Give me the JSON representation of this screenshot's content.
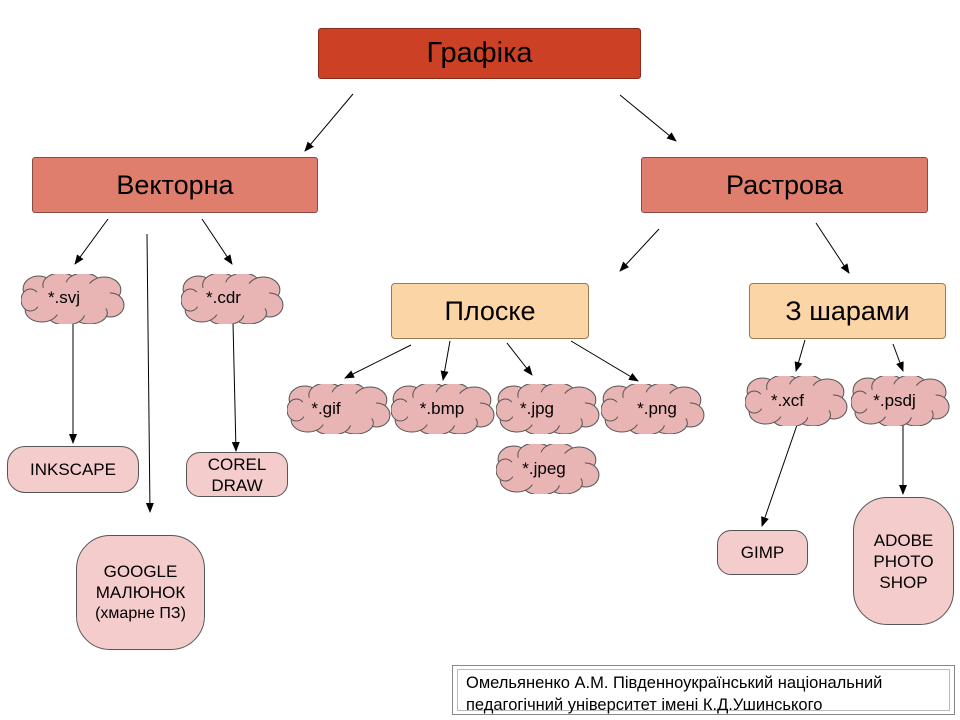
{
  "root": "Графіка",
  "categories": {
    "vector": "Векторна",
    "raster": "Растрова"
  },
  "raster_types": {
    "flat": "Плоске",
    "layered": "З шарами"
  },
  "formats": {
    "svj": "*.svj",
    "cdr": "*.cdr",
    "gif": "*.gif",
    "bmp": "*.bmp",
    "jpg": "*.jpg",
    "png": "*.png",
    "jpeg": "*.jpeg",
    "xcf": "*.xcf",
    "psdj": "*.psdj"
  },
  "programs": {
    "inkscape": "INKSCAPE",
    "corel": [
      "COREL",
      "DRAW"
    ],
    "google": [
      "GOOGLE",
      "МАЛЮНОК",
      "(хмарне ПЗ)"
    ],
    "gimp": "GIMP",
    "adobe": [
      "ADOBE",
      "PHOTO",
      "SHOP"
    ]
  },
  "credit": [
    "Омельяненко А.М. Південноукраїнський національний",
    "педагогічний університет імені К.Д.Ушинського"
  ],
  "colors": {
    "root": "#cc4125",
    "category": "#e07e6e",
    "subtype": "#fcd5a6",
    "format": "#e8b4b4",
    "program": "#f4cccc"
  }
}
